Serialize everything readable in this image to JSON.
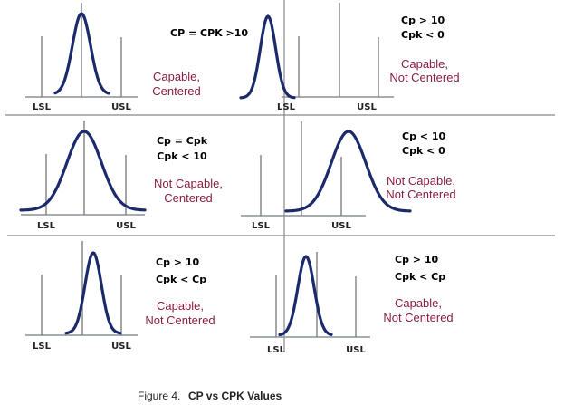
{
  "panels": [
    {
      "lsl": "LSL",
      "usl": "USL",
      "stats": [
        "CP = CPK >10"
      ],
      "verdict": [
        "Capable,",
        "Centered"
      ]
    },
    {
      "lsl": "LSL",
      "usl": "USL",
      "stats": [
        "Cp > 10",
        "Cpk < 0"
      ],
      "verdict": [
        "Capable,",
        "Not Centered"
      ]
    },
    {
      "lsl": "LSL",
      "usl": "USL",
      "stats": [
        "Cp = Cpk",
        "Cpk < 10"
      ],
      "verdict": [
        "Not Capable,",
        "Centered"
      ]
    },
    {
      "lsl": "LSL",
      "usl": "USL",
      "stats": [
        "Cp < 10",
        "Cpk < 0"
      ],
      "verdict": [
        "Not Capable,",
        "Not Centered"
      ]
    },
    {
      "lsl": "LSL",
      "usl": "USL",
      "stats": [
        "Cp > 10",
        "Cpk < Cp"
      ],
      "verdict": [
        "Capable,",
        "Not Centered"
      ]
    },
    {
      "lsl": "LSL",
      "usl": "USL",
      "stats": [
        "Cp > 10",
        "Cpk < Cp"
      ],
      "verdict": [
        "Capable,",
        "Not Centered"
      ]
    }
  ],
  "caption": {
    "prefix": "Figure 4.",
    "title": "CP vs CPK Values"
  },
  "colors": {
    "curve": "#1b2a6b",
    "verdict": "#8b1e3f",
    "lines": "#777777"
  }
}
